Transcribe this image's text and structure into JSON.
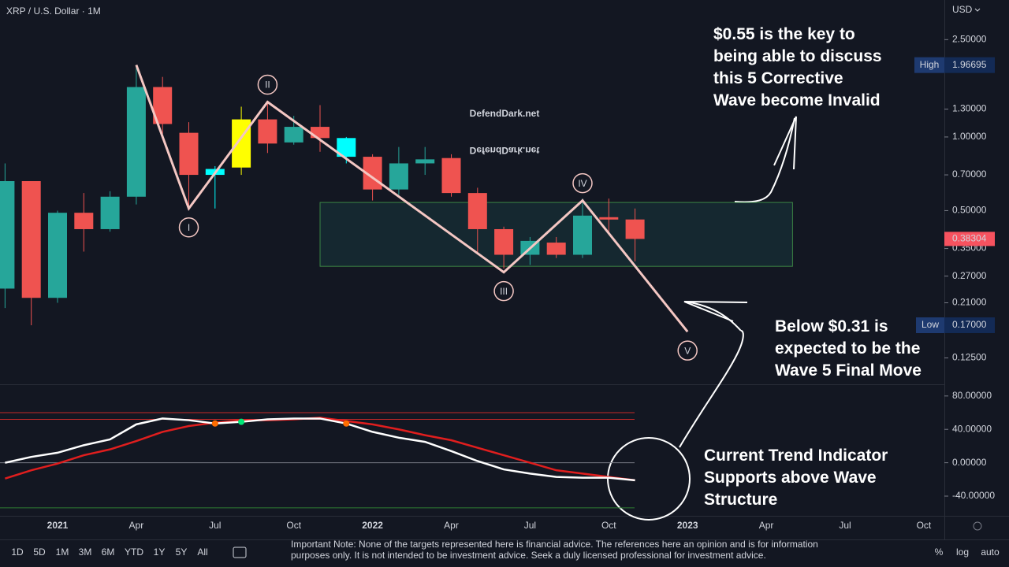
{
  "header": {
    "symbol": "XRP / U.S. Dollar · 1M",
    "currency": "USD"
  },
  "chart_data": [
    {
      "type": "candlestick",
      "categories": [
        null,
        null,
        "2021",
        null,
        null,
        "Apr",
        null,
        null,
        "Jul",
        null,
        null,
        "Oct",
        null,
        null,
        "2022",
        null,
        null,
        "Apr",
        null,
        null,
        "Jul",
        null,
        null,
        "Oct",
        null,
        null,
        "2023",
        null,
        null,
        "Apr",
        null,
        null,
        "Jul",
        null,
        null,
        "Oct"
      ],
      "open": [
        0.24,
        0.66,
        0.22,
        0.49,
        0.42,
        0.57,
        1.6,
        1.04,
        0.7,
        0.75,
        1.18,
        0.95,
        1.1,
        0.99,
        0.83,
        0.61,
        0.78,
        0.82,
        0.59,
        0.42,
        0.33,
        0.37,
        0.33,
        0.47,
        0.46,
        null,
        null,
        null,
        null,
        null,
        null,
        null,
        null,
        null,
        null,
        null
      ],
      "high": [
        0.78,
        0.66,
        0.5,
        0.59,
        0.6,
        1.96695,
        1.76,
        1.15,
        0.76,
        1.33,
        1.4,
        1.22,
        1.35,
        1.0,
        0.85,
        0.91,
        0.91,
        0.85,
        0.62,
        0.43,
        0.39,
        0.39,
        0.56,
        0.56,
        0.51,
        null,
        null,
        null,
        null,
        null,
        null,
        null,
        null,
        null,
        null,
        null
      ],
      "low": [
        0.2,
        0.17,
        0.21,
        0.34,
        0.41,
        0.53,
        1.03,
        0.51,
        0.51,
        0.7,
        0.86,
        0.93,
        0.87,
        0.78,
        0.55,
        0.58,
        0.7,
        0.57,
        0.33,
        0.29,
        0.3,
        0.32,
        0.32,
        0.41,
        0.31,
        null,
        null,
        null,
        null,
        null,
        null,
        null,
        null,
        null,
        null,
        null
      ],
      "close": [
        0.66,
        0.22,
        0.49,
        0.42,
        0.57,
        1.6,
        1.13,
        0.7,
        0.74,
        1.18,
        0.94,
        1.1,
        0.99,
        0.83,
        0.61,
        0.78,
        0.81,
        0.59,
        0.42,
        0.33,
        0.376,
        0.33,
        0.477,
        0.46,
        0.38304,
        null,
        null,
        null,
        null,
        null,
        null,
        null,
        null,
        null,
        null,
        null
      ],
      "colors": [
        "#26a69a",
        "#ef5350",
        "#26a69a",
        "#ef5350",
        "#26a69a",
        "#26a69a",
        "#ef5350",
        "#ef5350",
        "#00ffff",
        "#ffff00",
        "#ef5350",
        "#26a69a",
        "#ef5350",
        "#00ffff",
        "#ef5350",
        "#26a69a",
        "#26a69a",
        "#ef5350",
        "#ef5350",
        "#ef5350",
        "#26a69a",
        "#ef5350",
        "#26a69a",
        "#ef5350",
        "#ef5350",
        null,
        null,
        null,
        null,
        null,
        null,
        null,
        null,
        null,
        null,
        null
      ],
      "log_scale": true,
      "ylim": [
        0.0975,
        3.63
      ],
      "yticks": [
        {
          "value": 2.5,
          "label": "2.50000"
        },
        {
          "value": 1.3,
          "label": "1.30000"
        },
        {
          "value": 1.0,
          "label": "1.00000"
        },
        {
          "value": 0.7,
          "label": "0.70000"
        },
        {
          "value": 0.5,
          "label": "0.50000"
        },
        {
          "value": 0.35,
          "label": "0.35000"
        },
        {
          "value": 0.27,
          "label": "0.27000"
        },
        {
          "value": 0.21,
          "label": "0.21000"
        },
        {
          "value": 0.125,
          "label": "0.12500"
        }
      ],
      "watermark": "DefendDark.net",
      "high_marker": {
        "name": "High",
        "value": 1.96695
      },
      "low_marker": {
        "name": "Low",
        "value": 0.17,
        "value_label": "0.17000"
      },
      "last_price": 0.38304,
      "wave": {
        "color": "#f4c7c3",
        "x": [
          5,
          7,
          10,
          19,
          22,
          26
        ],
        "values": [
          1.97,
          0.51,
          1.39,
          0.28,
          0.55,
          0.16
        ],
        "labels": [
          null,
          "I",
          "II",
          "III",
          "IV",
          "V"
        ]
      },
      "zone": {
        "x": [
          12,
          30
        ],
        "values": [
          0.296,
          0.54
        ],
        "color": "#26a69a"
      },
      "annotations": [
        {
          "lines": [
            "$0.55 is the key to",
            "being able to discuss",
            "this 5 Corrective",
            "Wave become Invalid"
          ]
        },
        {
          "lines": [
            "Below $0.31 is",
            "expected to be the",
            "Wave 5 Final Move"
          ]
        },
        {
          "lines": [
            "Current Trend Indicator",
            "Supports above Wave",
            "Structure"
          ]
        }
      ]
    },
    {
      "type": "line",
      "series": [
        {
          "color": "#ffffff",
          "values": [
            0,
            7,
            12,
            21,
            28,
            46,
            53,
            51,
            47,
            49,
            52,
            53,
            53,
            47,
            37,
            30,
            25,
            14,
            2,
            -8,
            -13,
            -17,
            -18,
            -18,
            -21,
            null,
            null,
            null,
            null,
            null,
            null,
            null,
            null,
            null,
            null,
            null
          ]
        },
        {
          "color": "#e01e1e",
          "values": [
            -19,
            -9,
            -1,
            9,
            16,
            26,
            37,
            44,
            48,
            51,
            51,
            52,
            54,
            50,
            46,
            40,
            33,
            27,
            18,
            9,
            0,
            -9,
            -13,
            -17,
            -21,
            null,
            null,
            null,
            null,
            null,
            null,
            null,
            null,
            null,
            null,
            null
          ]
        }
      ],
      "ylim": [
        -63.6,
        94
      ],
      "yticks": [
        {
          "value": 80,
          "label": "80.00000"
        },
        {
          "value": 40,
          "label": "40.00000"
        },
        {
          "value": 0,
          "label": "0.00000"
        },
        {
          "value": -40,
          "label": "-40.00000"
        }
      ],
      "levels": [
        {
          "value": 60,
          "color": "#c62828"
        },
        {
          "value": 52,
          "color": "#c62828"
        },
        {
          "value": 0,
          "color": "#787b86"
        },
        {
          "value": -54,
          "color": "#2e7d32"
        }
      ],
      "signals": {
        "x": [
          8,
          9,
          13
        ],
        "colors": [
          "#ff6d00",
          "#00e676",
          "#ff6d00"
        ]
      }
    }
  ],
  "timeframes": [
    "1D",
    "5D",
    "1M",
    "3M",
    "6M",
    "YTD",
    "1Y",
    "5Y",
    "All"
  ],
  "note": [
    "Important Note: None of the targets represented here is financial advice. The references here an opinion and is for information",
    "purposes only. It is not intended to be investment advice. Seek a duly licensed professional for investment advice."
  ],
  "scale_buttons": [
    "%",
    "log",
    "auto"
  ]
}
